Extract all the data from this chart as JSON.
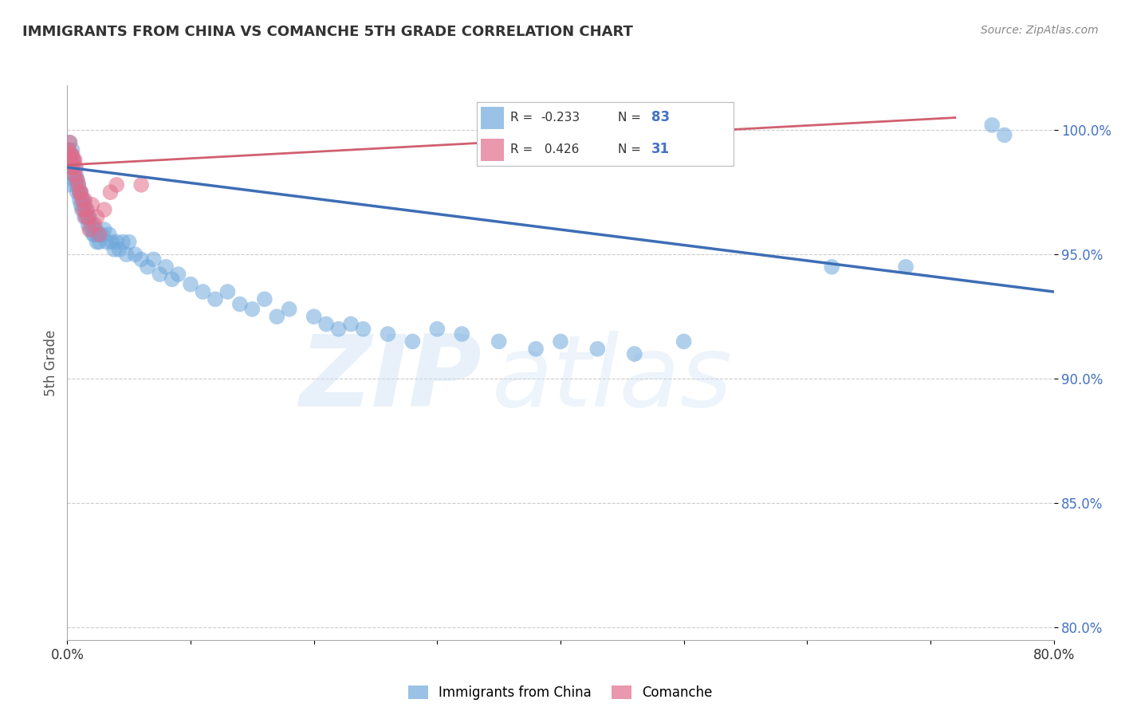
{
  "title": "IMMIGRANTS FROM CHINA VS COMANCHE 5TH GRADE CORRELATION CHART",
  "source": "Source: ZipAtlas.com",
  "ylabel": "5th Grade",
  "y_ticks": [
    80.0,
    85.0,
    90.0,
    95.0,
    100.0
  ],
  "y_tick_labels": [
    "80.0%",
    "85.0%",
    "90.0%",
    "95.0%",
    "100.0%"
  ],
  "x_range": [
    0.0,
    0.8
  ],
  "y_range": [
    79.5,
    101.8
  ],
  "legend_label1": "Immigrants from China",
  "legend_label2": "Comanche",
  "r1": -0.233,
  "n1": 83,
  "r2": 0.426,
  "n2": 31,
  "blue_color": "#6fa8dc",
  "pink_color": "#e06c8a",
  "blue_line_color": "#3d6eb5",
  "pink_line_color": "#d06070",
  "watermark_zip": "ZIP",
  "watermark_atlas": "atlas",
  "blue_trend_x": [
    0.0,
    0.8
  ],
  "blue_trend_y": [
    98.5,
    93.5
  ],
  "pink_trend_x": [
    0.001,
    0.72
  ],
  "pink_trend_y": [
    98.6,
    100.5
  ],
  "blue_scatter_x": [
    0.001,
    0.002,
    0.003,
    0.003,
    0.004,
    0.004,
    0.005,
    0.005,
    0.006,
    0.006,
    0.007,
    0.007,
    0.008,
    0.008,
    0.009,
    0.01,
    0.01,
    0.011,
    0.011,
    0.012,
    0.013,
    0.014,
    0.014,
    0.015,
    0.016,
    0.017,
    0.018,
    0.019,
    0.02,
    0.021,
    0.022,
    0.023,
    0.024,
    0.025,
    0.026,
    0.028,
    0.03,
    0.032,
    0.034,
    0.036,
    0.038,
    0.04,
    0.042,
    0.045,
    0.048,
    0.05,
    0.055,
    0.06,
    0.065,
    0.07,
    0.075,
    0.08,
    0.085,
    0.09,
    0.1,
    0.11,
    0.12,
    0.13,
    0.14,
    0.15,
    0.16,
    0.17,
    0.18,
    0.2,
    0.21,
    0.22,
    0.23,
    0.24,
    0.26,
    0.28,
    0.3,
    0.32,
    0.35,
    0.38,
    0.4,
    0.43,
    0.46,
    0.5,
    0.62,
    0.68,
    0.75,
    0.76,
    0.001
  ],
  "blue_scatter_y": [
    99.2,
    99.5,
    98.8,
    99.0,
    98.5,
    99.2,
    98.2,
    98.8,
    98.0,
    98.5,
    97.8,
    98.2,
    97.5,
    98.0,
    97.8,
    97.5,
    97.2,
    97.0,
    97.5,
    96.8,
    97.2,
    96.5,
    97.0,
    96.8,
    96.5,
    96.2,
    96.5,
    96.0,
    96.2,
    95.8,
    95.8,
    96.0,
    95.5,
    95.8,
    95.5,
    95.8,
    96.0,
    95.5,
    95.8,
    95.5,
    95.2,
    95.5,
    95.2,
    95.5,
    95.0,
    95.5,
    95.0,
    94.8,
    94.5,
    94.8,
    94.2,
    94.5,
    94.0,
    94.2,
    93.8,
    93.5,
    93.2,
    93.5,
    93.0,
    92.8,
    93.2,
    92.5,
    92.8,
    92.5,
    92.2,
    92.0,
    92.2,
    92.0,
    91.8,
    91.5,
    92.0,
    91.8,
    91.5,
    91.2,
    91.5,
    91.2,
    91.0,
    91.5,
    94.5,
    94.5,
    100.2,
    99.8,
    97.8
  ],
  "pink_scatter_x": [
    0.001,
    0.002,
    0.002,
    0.003,
    0.003,
    0.004,
    0.004,
    0.005,
    0.006,
    0.006,
    0.007,
    0.008,
    0.009,
    0.01,
    0.011,
    0.012,
    0.013,
    0.014,
    0.015,
    0.016,
    0.017,
    0.018,
    0.02,
    0.022,
    0.024,
    0.026,
    0.03,
    0.035,
    0.04,
    0.06,
    0.35
  ],
  "pink_scatter_y": [
    99.2,
    99.5,
    98.8,
    99.0,
    98.5,
    99.0,
    98.5,
    98.8,
    98.2,
    98.8,
    98.5,
    98.0,
    97.8,
    97.5,
    97.5,
    97.2,
    96.8,
    97.2,
    96.5,
    96.8,
    96.5,
    96.0,
    97.0,
    96.2,
    96.5,
    95.8,
    96.8,
    97.5,
    97.8,
    97.8,
    100.2
  ]
}
